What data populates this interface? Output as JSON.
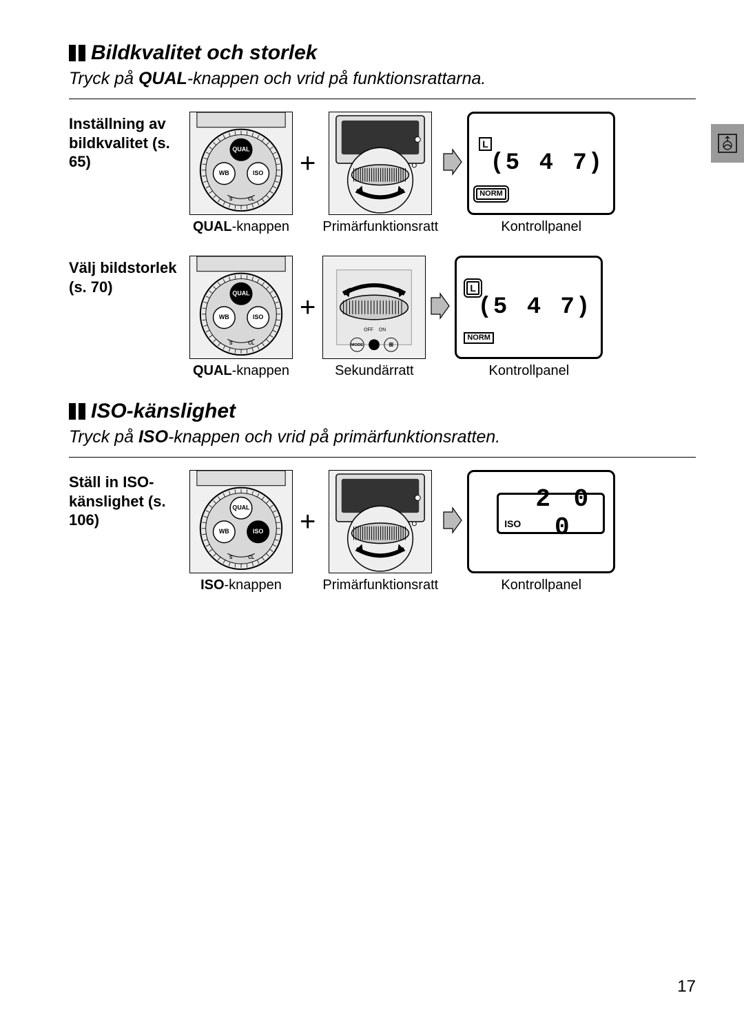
{
  "page_number": "17",
  "sections": [
    {
      "heading": "Bildkvalitet och storlek",
      "subtitle_pre": "Tryck på ",
      "subtitle_bold": "QUAL",
      "subtitle_post": "-knappen och vrid på funktionsrattarna.",
      "rows": [
        {
          "label": "Inställning av bildkvalitet (s. 65)",
          "panel1_caption_bold": "QUAL",
          "panel1_caption_rest": "-knappen",
          "panel1_highlight": "QUAL",
          "panel2_caption": "Primärfunktionsratt",
          "panel2_type": "rear",
          "panel3_caption": "Kontrollpanel",
          "lcd": {
            "badge_L": "L",
            "badge_NORM": "NORM",
            "highlight": "NORM",
            "value": "5 4 7",
            "show_brackets": true
          }
        },
        {
          "label": "Välj bildstorlek (s. 70)",
          "panel1_caption_bold": "QUAL",
          "panel1_caption_rest": "-knappen",
          "panel1_highlight": "QUAL",
          "panel2_caption": "Sekundärratt",
          "panel2_type": "front",
          "panel3_caption": "Kontrollpanel",
          "lcd": {
            "badge_L": "L",
            "badge_NORM": "NORM",
            "highlight": "L",
            "value": "5 4 7",
            "show_brackets": true
          }
        }
      ]
    },
    {
      "heading": "ISO-känslighet",
      "subtitle_pre": "Tryck på ",
      "subtitle_bold": "ISO",
      "subtitle_post": "-knappen och vrid på primärfunktionsratten.",
      "rows": [
        {
          "label": "Ställ in ISO-känslighet (s. 106)",
          "panel1_caption_bold": "ISO",
          "panel1_caption_rest": "-knappen",
          "panel1_highlight": "ISO",
          "panel2_caption": "Primärfunktionsratt",
          "panel2_type": "rear",
          "panel3_caption": "Kontrollpanel",
          "lcd": {
            "type": "iso",
            "iso_label": "ISO",
            "value": "2 0 0"
          }
        }
      ]
    }
  ],
  "colors": {
    "text": "#000000",
    "background": "#ffffff",
    "panel_bg": "#f0f0f0",
    "side_tab": "#9a9a9a"
  }
}
